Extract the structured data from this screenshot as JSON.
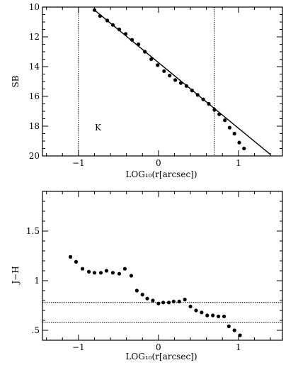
{
  "chart_data": [
    {
      "type": "scatter",
      "title": "",
      "xlabel": "LOG₁₀(r[arcsec])",
      "ylabel": "SB",
      "xlim": [
        -1.45,
        1.55
      ],
      "ylim": [
        10,
        20
      ],
      "y_inverted": true,
      "x_ticks": [
        -1,
        0,
        1
      ],
      "y_ticks": [
        10,
        12,
        14,
        16,
        18,
        20
      ],
      "band_label": "K",
      "vertical_lines": [
        -1.0,
        0.7
      ],
      "model_line": {
        "x": [
          -0.8,
          1.4
        ],
        "y": [
          10.2,
          19.9
        ]
      },
      "points": {
        "x": [
          -0.8,
          -0.73,
          -0.64,
          -0.57,
          -0.49,
          -0.41,
          -0.33,
          -0.25,
          -0.17,
          -0.09,
          -0.01,
          0.07,
          0.14,
          0.21,
          0.28,
          0.35,
          0.42,
          0.49,
          0.56,
          0.63,
          0.7,
          0.76,
          0.83,
          0.89,
          0.95,
          1.01,
          1.07
        ],
        "y": [
          10.2,
          10.6,
          10.9,
          11.2,
          11.5,
          11.8,
          12.2,
          12.5,
          13.0,
          13.5,
          13.9,
          14.3,
          14.6,
          14.9,
          15.1,
          15.3,
          15.6,
          15.9,
          16.2,
          16.5,
          16.9,
          17.2,
          17.6,
          18.1,
          18.5,
          19.1,
          19.5
        ]
      }
    },
    {
      "type": "scatter",
      "title": "",
      "xlabel": "LOG₁₀(r[arcsec])",
      "ylabel": "J−H",
      "xlim": [
        -1.45,
        1.55
      ],
      "ylim": [
        0.4,
        1.9
      ],
      "x_ticks": [
        -1,
        0,
        1
      ],
      "y_ticks": [
        0.5,
        1.0,
        1.5
      ],
      "y_tick_labels": [
        ".5",
        "1",
        "1.5"
      ],
      "horizontal_lines": [
        0.78,
        0.58
      ],
      "points": {
        "x": [
          -1.1,
          -1.03,
          -0.95,
          -0.87,
          -0.8,
          -0.72,
          -0.65,
          -0.57,
          -0.49,
          -0.42,
          -0.34,
          -0.27,
          -0.2,
          -0.14,
          -0.07,
          0.0,
          0.06,
          0.13,
          0.19,
          0.26,
          0.33,
          0.4,
          0.47,
          0.54,
          0.61,
          0.68,
          0.75,
          0.82,
          0.88,
          0.95,
          1.02
        ],
        "y": [
          1.24,
          1.19,
          1.12,
          1.09,
          1.08,
          1.08,
          1.1,
          1.08,
          1.07,
          1.12,
          1.05,
          0.9,
          0.86,
          0.82,
          0.8,
          0.77,
          0.78,
          0.78,
          0.79,
          0.79,
          0.81,
          0.74,
          0.7,
          0.68,
          0.65,
          0.65,
          0.64,
          0.64,
          0.54,
          0.5,
          0.45
        ]
      }
    }
  ]
}
